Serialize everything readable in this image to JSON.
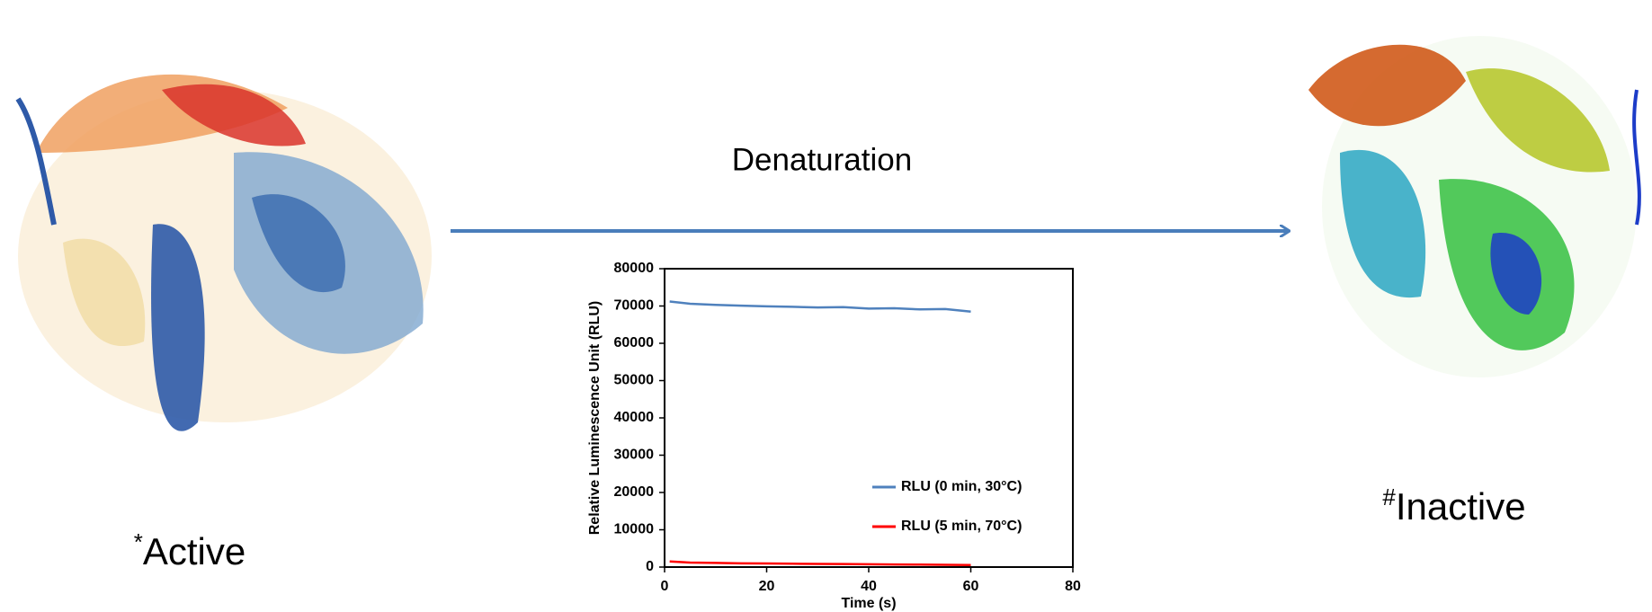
{
  "left_label": {
    "marker": "*",
    "text": "Active"
  },
  "right_label": {
    "marker": "#",
    "text": "Inactive"
  },
  "arrow_label": "Denaturation",
  "chart_data": {
    "type": "line",
    "x_label": "Time (s)",
    "y_label": "Relative Luminescence Unit (RLU)",
    "x": [
      1,
      5,
      10,
      15,
      20,
      25,
      30,
      35,
      40,
      45,
      50,
      55,
      60
    ],
    "series": [
      {
        "name": "RLU (0 min, 30°C)",
        "color": "#4f81bd",
        "values": [
          71200,
          70600,
          70300,
          70100,
          69900,
          69800,
          69600,
          69700,
          69300,
          69400,
          69100,
          69200,
          68500
        ]
      },
      {
        "name": "RLU (5 min, 70°C)",
        "color": "#ff0000",
        "values": [
          1500,
          1200,
          1100,
          1000,
          950,
          900,
          850,
          800,
          750,
          700,
          650,
          600,
          550
        ]
      }
    ],
    "xlim": [
      0,
      80
    ],
    "xticks": [
      0,
      20,
      40,
      60,
      80
    ],
    "ylim": [
      0,
      80000
    ],
    "yticks": [
      0,
      10000,
      20000,
      30000,
      40000,
      50000,
      60000,
      70000,
      80000
    ]
  }
}
